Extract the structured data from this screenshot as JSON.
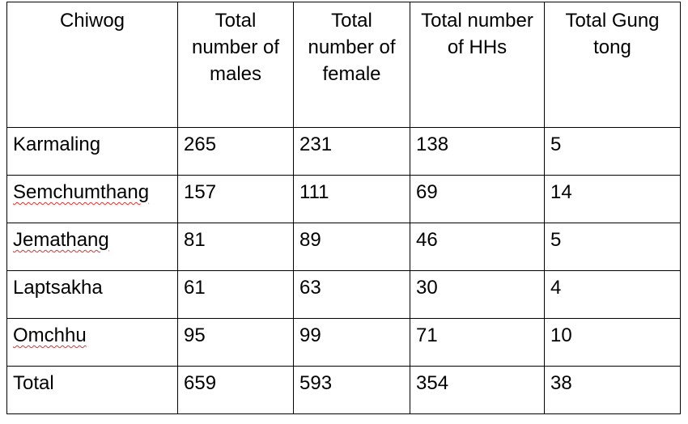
{
  "table": {
    "headers": [
      "Chiwog",
      "Total number of males",
      "Total number of female",
      "Total number of HHs",
      "Total Gung tong"
    ],
    "rows": [
      {
        "chiwog": "Karmaling",
        "males": "265",
        "female": "231",
        "hhs": "138",
        "gung_tong": "5"
      },
      {
        "chiwog": "Semchumthang",
        "males": "157",
        "female": "111",
        "hhs": "69",
        "gung_tong": "14"
      },
      {
        "chiwog": "Jemathang",
        "males": "81",
        "female": "89",
        "hhs": "46",
        "gung_tong": "5"
      },
      {
        "chiwog": "Laptsakha",
        "males": "61",
        "female": "63",
        "hhs": "30",
        "gung_tong": "4"
      },
      {
        "chiwog": "Omchhu",
        "males": "95",
        "female": "99",
        "hhs": "71",
        "gung_tong": "10"
      },
      {
        "chiwog": "Total",
        "males": "659",
        "female": "593",
        "hhs": "354",
        "gung_tong": "38"
      }
    ]
  }
}
